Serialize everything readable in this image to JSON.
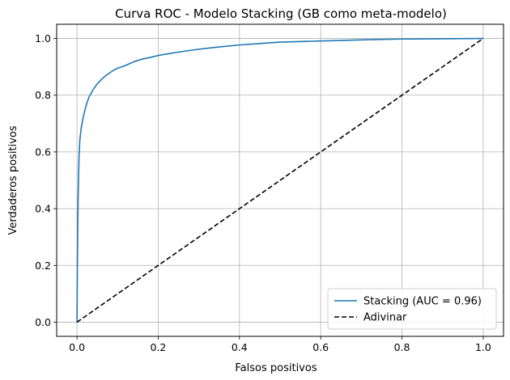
{
  "chart_data": {
    "type": "line",
    "title": "Curva ROC - Modelo Stacking (GB como meta-modelo)",
    "xlabel": "Falsos positivos",
    "ylabel": "Verdaderos positivos",
    "xlim": [
      -0.05,
      1.05
    ],
    "ylim": [
      -0.05,
      1.05
    ],
    "xticks": [
      "0.0",
      "0.2",
      "0.4",
      "0.6",
      "0.8",
      "1.0"
    ],
    "yticks": [
      "0.0",
      "0.2",
      "0.4",
      "0.6",
      "0.8",
      "1.0"
    ],
    "grid": true,
    "legend_position": "lower-right",
    "series": [
      {
        "name": "Stacking (AUC = 0.96)",
        "color": "#1f77b4",
        "style": "solid",
        "x": [
          0,
          0.001,
          0.002,
          0.003,
          0.004,
          0.005,
          0.007,
          0.01,
          0.015,
          0.02,
          0.025,
          0.03,
          0.04,
          0.05,
          0.06,
          0.07,
          0.08,
          0.09,
          0.1,
          0.12,
          0.14,
          0.16,
          0.18,
          0.2,
          0.25,
          0.3,
          0.35,
          0.4,
          0.45,
          0.5,
          0.6,
          0.7,
          0.8,
          0.9,
          1.0
        ],
        "y": [
          0,
          0.2,
          0.35,
          0.45,
          0.52,
          0.58,
          0.64,
          0.68,
          0.72,
          0.75,
          0.775,
          0.795,
          0.82,
          0.84,
          0.855,
          0.868,
          0.878,
          0.888,
          0.895,
          0.905,
          0.918,
          0.927,
          0.933,
          0.94,
          0.952,
          0.962,
          0.97,
          0.977,
          0.982,
          0.987,
          0.991,
          0.995,
          0.998,
          0.999,
          1.0
        ]
      },
      {
        "name": "Adivinar",
        "color": "#000000",
        "style": "dashed",
        "x": [
          0,
          1
        ],
        "y": [
          0,
          1
        ]
      }
    ]
  }
}
